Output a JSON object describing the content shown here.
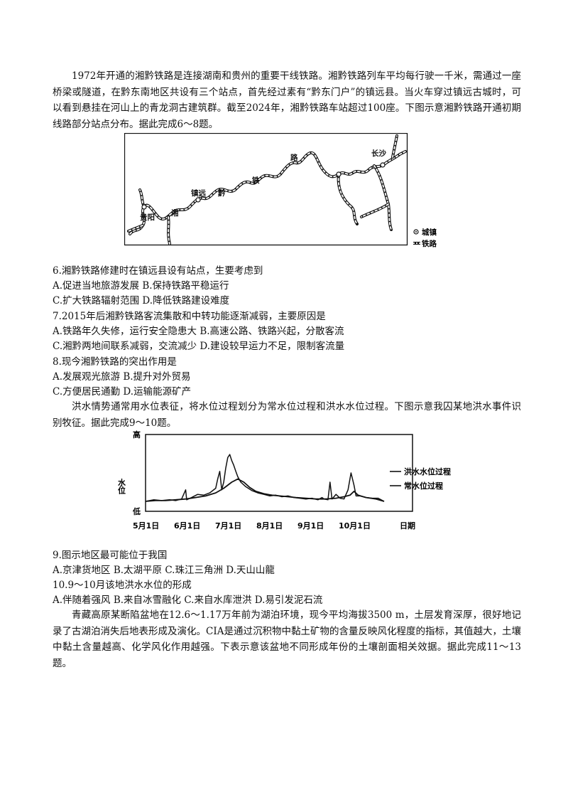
{
  "passage1": "1972年开通的湘黔铁路是连接湖南和贵州的重要干线铁路。湘黔铁路列车平均每行驶一千米，需通过一座桥梁或隧道，在黔东南地区共设有三个站点，首先经过素有“黔东门户”的镇远县。当火车穿过镇远古城时，可以看到悬挂在河山上的青龙洞古建筑群。截至2024年，湘黔铁路车站超过100座。下图示意湘黔铁路开通初期线路部分站点分布。据此完成6～8题。",
  "map": {
    "labels": {
      "changsha": "长沙",
      "guiyang": "贵阳",
      "zhenyuan": "镇远",
      "xiang": "湘",
      "qian": "黔",
      "tie": "铁",
      "lu": "路"
    },
    "legend": {
      "town": "城镇",
      "railway": "铁路"
    }
  },
  "q6": {
    "stem": "6.湘黔铁路修建时在镇远县设有站点，生要考虑到",
    "line1": "A.促进当地旅游发展 B.保持铁路平稳运行",
    "line2": "C.扩大铁路辐射范围 D.降低铁路建设难度"
  },
  "q7": {
    "stem": "7.2015年后湘黔铁路客流集散和中转功能逐渐减弱，主要原因是",
    "line1": "A.铁路年久失修，运行安全隐患大 B.高速公路、铁路兴起，分散客流",
    "line2": "C.湘黔两地间联系减弱，交流减少 D.建设较早运力不足，限制客流量"
  },
  "q8": {
    "stem": "8.现今湘黔铁路的突出作用是",
    "line1": "A.发展观光旅游 B.提升对外贸易",
    "line2": "C.方便居民通勤 D.运输能源矿产"
  },
  "passage2": "洪水情势通常用水位表征，将水位过程划分为常水位过程和洪水水位过程。下图示意我囚某地洪水事件识别牧征。据此完成9～10题。",
  "chart_data": {
    "type": "line",
    "ylabel": "水位",
    "y_top_label": "高",
    "y_bottom_label": "低",
    "xlabel": "日期",
    "x_ticks": [
      "5月1日",
      "6月1日",
      "7月1日",
      "8月1日",
      "9月1日",
      "10月1日"
    ],
    "legend_position": "right",
    "series": [
      {
        "name": "洪水水位过程",
        "points": [
          [
            0,
            0.13
          ],
          [
            8,
            0.15
          ],
          [
            16,
            0.14
          ],
          [
            24,
            0.15
          ],
          [
            30,
            0.14
          ],
          [
            36,
            0.16
          ],
          [
            40,
            0.28
          ],
          [
            41,
            0.15
          ],
          [
            46,
            0.18
          ],
          [
            52,
            0.22
          ],
          [
            58,
            0.21
          ],
          [
            64,
            0.24
          ],
          [
            70,
            0.3
          ],
          [
            72,
            0.42
          ],
          [
            74,
            0.52
          ],
          [
            76,
            0.28
          ],
          [
            78,
            0.38
          ],
          [
            80,
            0.56
          ],
          [
            82,
            0.7
          ],
          [
            84,
            0.74
          ],
          [
            86,
            0.66
          ],
          [
            88,
            0.6
          ],
          [
            90,
            0.52
          ],
          [
            92,
            0.45
          ],
          [
            95,
            0.38
          ],
          [
            100,
            0.32
          ],
          [
            106,
            0.27
          ],
          [
            112,
            0.24
          ],
          [
            118,
            0.22
          ],
          [
            124,
            0.2
          ],
          [
            130,
            0.21
          ],
          [
            136,
            0.19
          ],
          [
            142,
            0.2
          ],
          [
            148,
            0.18
          ],
          [
            154,
            0.17
          ],
          [
            160,
            0.16
          ],
          [
            166,
            0.17
          ],
          [
            172,
            0.15
          ],
          [
            176,
            0.18
          ],
          [
            178,
            0.16
          ],
          [
            182,
            0.15
          ],
          [
            184,
            0.38
          ],
          [
            186,
            0.16
          ],
          [
            190,
            0.22
          ],
          [
            194,
            0.17
          ],
          [
            198,
            0.16
          ],
          [
            202,
            0.28
          ],
          [
            205,
            0.5
          ],
          [
            208,
            0.34
          ],
          [
            210,
            0.2
          ],
          [
            214,
            0.2
          ],
          [
            220,
            0.18
          ],
          [
            226,
            0.17
          ],
          [
            232,
            0.17
          ],
          [
            238,
            0.13
          ]
        ]
      },
      {
        "name": "常水位过程",
        "points": [
          [
            0,
            0.13
          ],
          [
            10,
            0.14
          ],
          [
            20,
            0.14
          ],
          [
            30,
            0.15
          ],
          [
            40,
            0.16
          ],
          [
            50,
            0.18
          ],
          [
            60,
            0.2
          ],
          [
            70,
            0.24
          ],
          [
            78,
            0.3
          ],
          [
            86,
            0.38
          ],
          [
            92,
            0.42
          ],
          [
            98,
            0.38
          ],
          [
            104,
            0.31
          ],
          [
            110,
            0.26
          ],
          [
            118,
            0.23
          ],
          [
            126,
            0.21
          ],
          [
            134,
            0.2
          ],
          [
            142,
            0.19
          ],
          [
            150,
            0.18
          ],
          [
            160,
            0.17
          ],
          [
            170,
            0.16
          ],
          [
            180,
            0.16
          ],
          [
            190,
            0.17
          ],
          [
            198,
            0.19
          ],
          [
            204,
            0.21
          ],
          [
            208,
            0.26
          ],
          [
            212,
            0.21
          ],
          [
            220,
            0.18
          ],
          [
            230,
            0.16
          ],
          [
            238,
            0.13
          ]
        ]
      }
    ]
  },
  "q9": {
    "stem": "9.图示地区最可能位于我国",
    "line1": "A.京津货地区 B.太湖平原 C.珠江三角洲 D.天山山龍"
  },
  "q10": {
    "stem": "10.9～10月该地洪水水位的形成",
    "line1": "A.伴随着强风 B.来自冰雪融化 C.来自水库泄洪 D.易引发泥石流"
  },
  "passage3": "青藏高原某断陷盆地在12.6～1.17万年前为湖泊环境，现今平均海拔3500 m，土层发育深厚，很好地记录了古湖泊消失后地表形成及演化。CIA是通过沉积物中黏土矿物的含量反映风化程度的指标，其值越大，土壤中黏土含量越高、化学风化作用越强。下表示意该盆地不同形成年份的土壤剖面相关效据。据此完成11～13题。"
}
